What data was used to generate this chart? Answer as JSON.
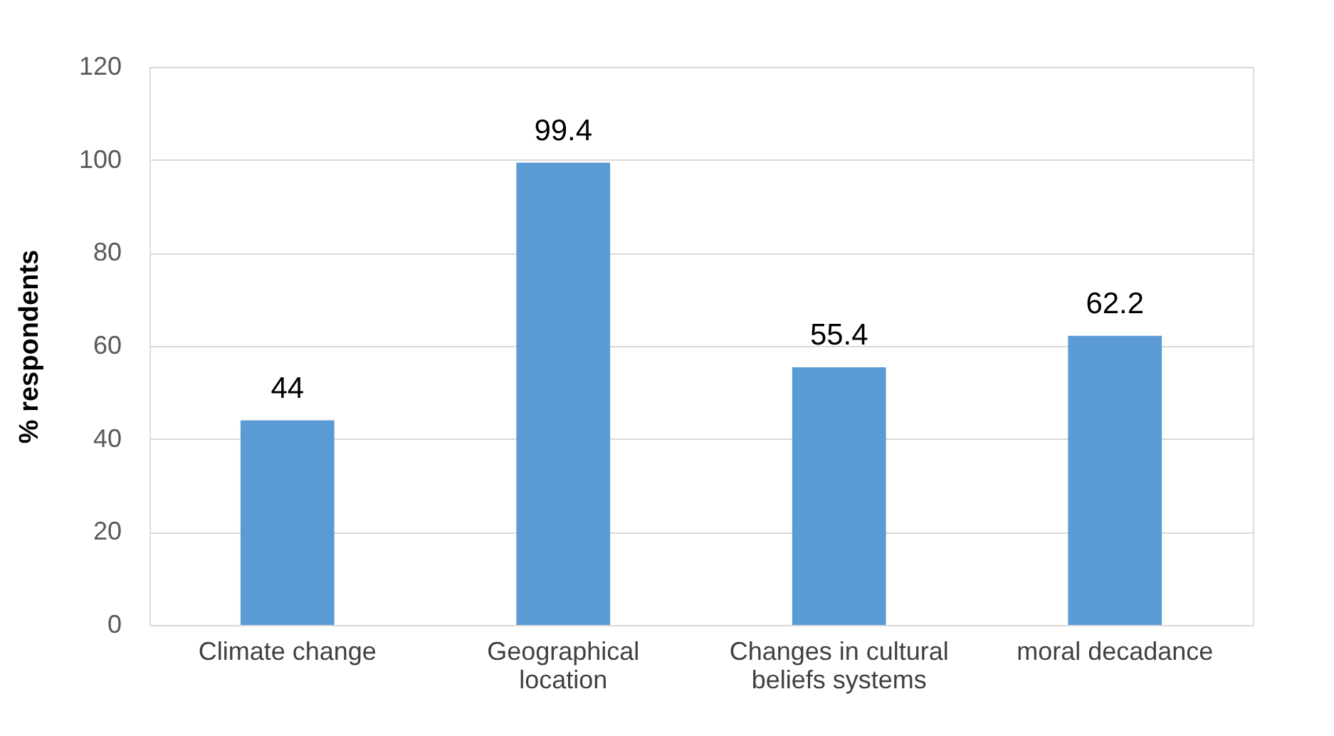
{
  "chart_data": {
    "type": "bar",
    "ylabel": "% respondents",
    "categories": [
      "Climate change",
      "Geographical location",
      "Changes in cultural beliefs systems",
      "moral decadance"
    ],
    "values": [
      44,
      99.4,
      55.4,
      62.2
    ],
    "color": "#5b9bd5",
    "ylim": [
      0,
      120
    ],
    "yticks": [
      0,
      20,
      40,
      60,
      80,
      100,
      120
    ],
    "grid": "y",
    "data_labels": true
  }
}
